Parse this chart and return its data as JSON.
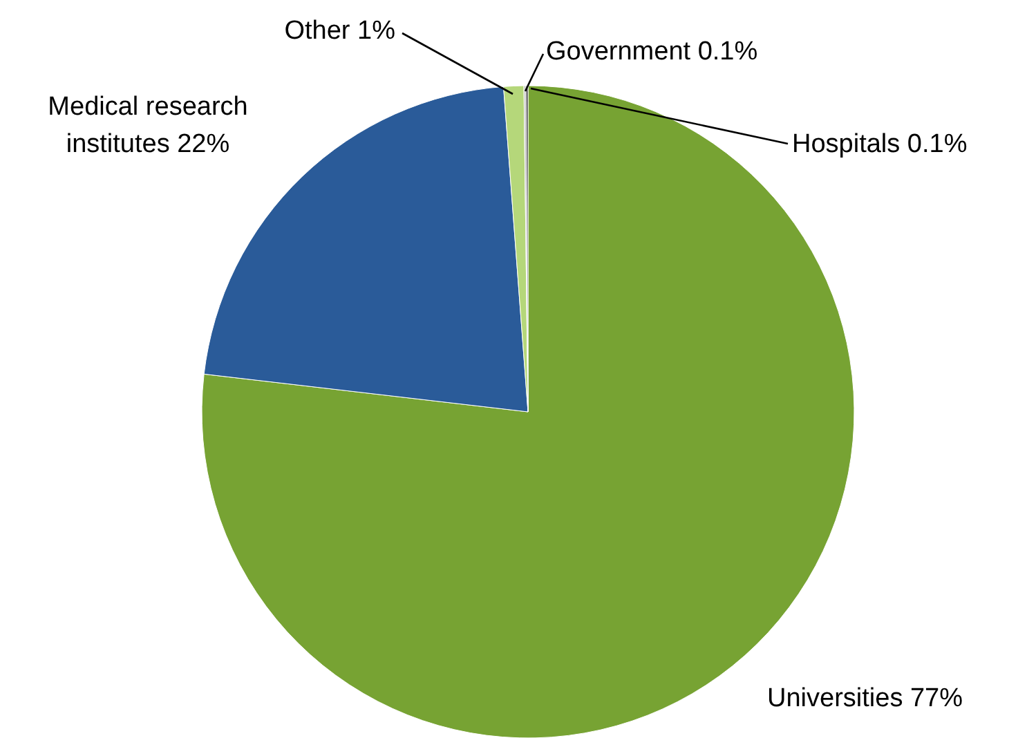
{
  "chart_data": {
    "type": "pie",
    "categories": [
      "Universities",
      "Medical research institutes",
      "Other",
      "Government",
      "Hospitals"
    ],
    "values": [
      77,
      22,
      1,
      0.1,
      0.1
    ],
    "value_labels": [
      "77%",
      "22%",
      "1%",
      "0.1%",
      "0.1%"
    ],
    "colors": [
      "#77a333",
      "#2a5b99",
      "#b5d77a",
      "#bfbfbf",
      "#3f3f3f"
    ]
  }
}
